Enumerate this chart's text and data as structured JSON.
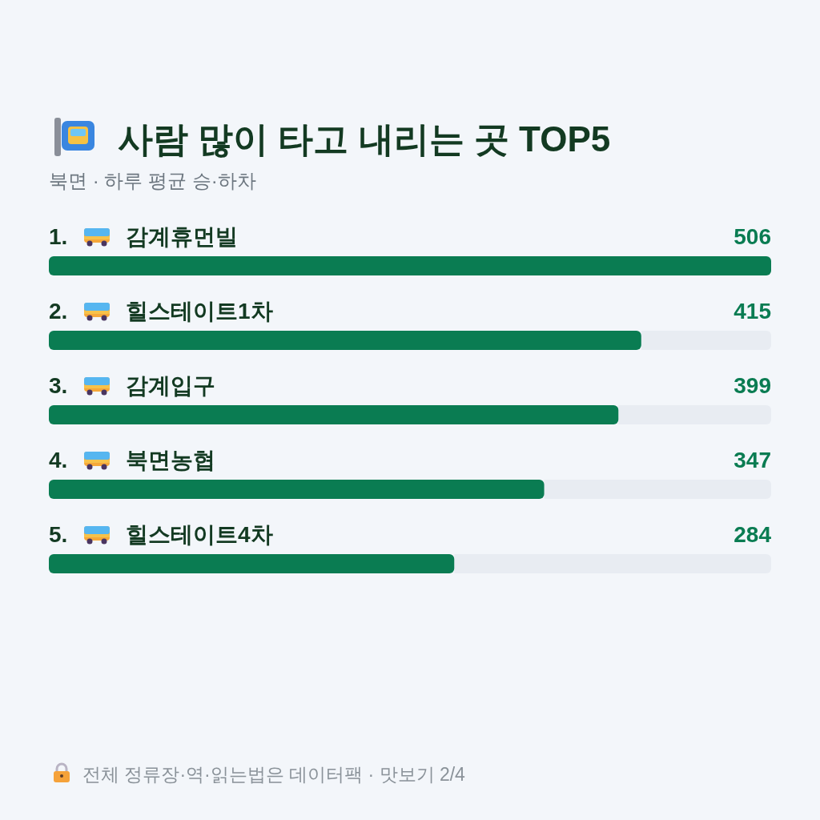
{
  "chart_data": {
    "type": "bar",
    "orientation": "horizontal",
    "title": "사람 많이 타고 내리는 곳 TOP5",
    "subtitle": "북면 · 하루 평균 승·하차",
    "categories": [
      "1. 감계휴먼빌",
      "2. 힐스테이트1차",
      "3. 감계입구",
      "4. 북면농협",
      "5. 힐스테이트4차"
    ],
    "values": [
      506,
      415,
      399,
      347,
      284
    ],
    "color": "#0a7c52",
    "data_labels": true,
    "xlim": [
      0,
      506
    ],
    "annotations": [
      "전체 정류장·역·읽는법은 데이터팩 · 맛보기 2/4"
    ]
  }
}
